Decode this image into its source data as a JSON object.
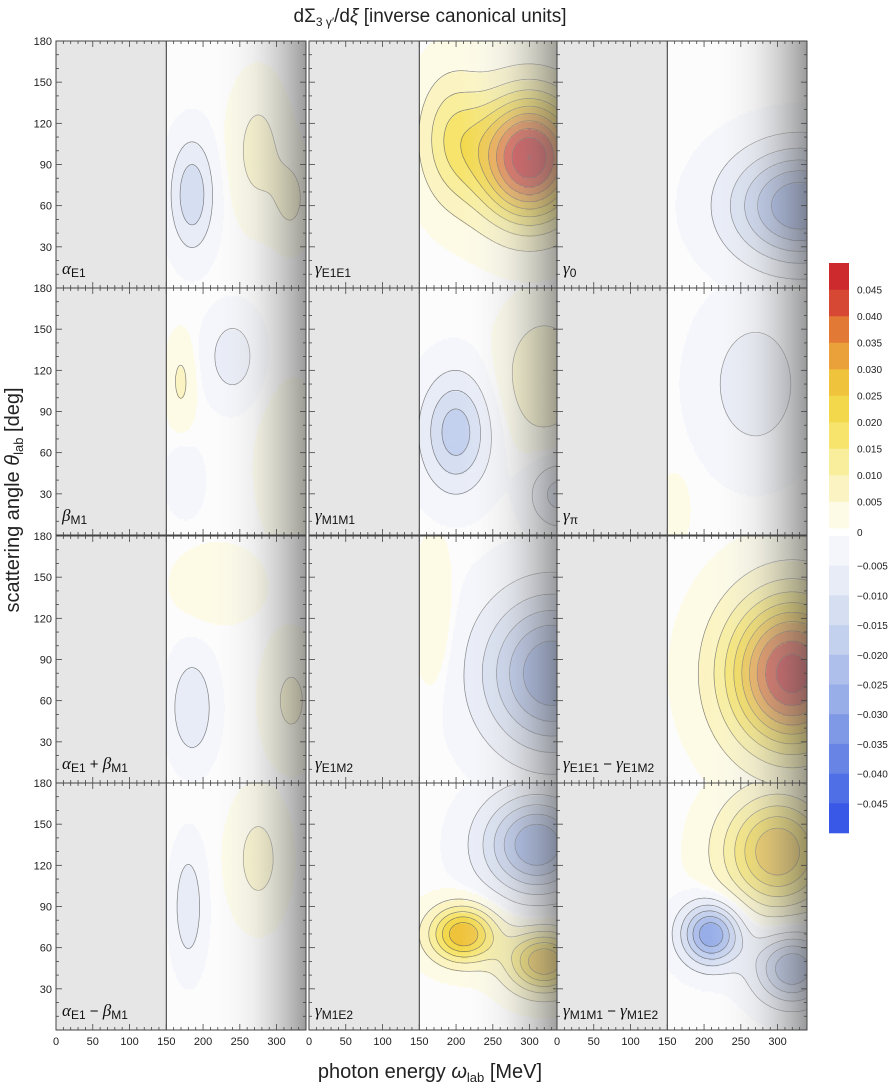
{
  "chart_data": {
    "type": "heatmap",
    "title_parts": [
      "dΣ",
      "3 γ′",
      "/d",
      "ξ",
      " [inverse canonical units]"
    ],
    "xlabel_parts": [
      "photon energy ",
      "ω",
      "lab",
      " [MeV]"
    ],
    "ylabel_parts": [
      "scattering angle ",
      "θ",
      "lab",
      " [deg]"
    ],
    "x_ticks": [
      0,
      50,
      100,
      150,
      200,
      250,
      300
    ],
    "x_tick_labels": [
      "0",
      "50",
      "100",
      "150",
      "200",
      "250",
      "300"
    ],
    "y_ticks": [
      30,
      60,
      90,
      120,
      150,
      180
    ],
    "y_tick_labels": [
      "30",
      "60",
      "90",
      "120",
      "150",
      "180"
    ],
    "xlim": [
      0,
      340
    ],
    "ylim": [
      0,
      180
    ],
    "threshold_energy": 150,
    "colorbar": {
      "ticks": [
        0.045,
        0.04,
        0.035,
        0.03,
        0.025,
        0.02,
        0.015,
        0.01,
        0.005,
        0,
        -0.005,
        -0.01,
        -0.015,
        -0.02,
        -0.025,
        -0.03,
        -0.035,
        -0.04,
        -0.045
      ],
      "tick_labels": [
        "0.045",
        "0.040",
        "0.035",
        "0.030",
        "0.025",
        "0.020",
        "0.015",
        "0.010",
        "0.005",
        "0",
        "−0.005",
        "−0.010",
        "−0.015",
        "−0.020",
        "−0.025",
        "−0.030",
        "−0.035",
        "−0.040",
        "−0.045"
      ],
      "positive_colors": [
        "#fdfbe6",
        "#fbf4c2",
        "#f8ee9c",
        "#f6e46d",
        "#f2d84a",
        "#efc33b",
        "#eaa13a",
        "#e27a35",
        "#d64734",
        "#cd2a2e"
      ],
      "negative_colors": [
        "#f4f6fb",
        "#e8ecf7",
        "#d6dff2",
        "#c3d0ee",
        "#adbfea",
        "#97aee8",
        "#7f99e6",
        "#6885e6",
        "#4f6fe6",
        "#3a58e8"
      ],
      "range": [
        -0.05,
        0.05
      ]
    },
    "panels": [
      {
        "row": 0,
        "col": 0,
        "label": "α",
        "label_sub": "E1",
        "blobs": [
          {
            "w": 185,
            "t": 68,
            "sw": 28,
            "st": 38,
            "a": -0.014
          },
          {
            "w": 275,
            "t": 100,
            "sw": 35,
            "st": 45,
            "a": 0.007
          },
          {
            "w": 320,
            "t": 65,
            "sw": 25,
            "st": 30,
            "a": 0.006
          }
        ]
      },
      {
        "row": 0,
        "col": 1,
        "label": "γ",
        "label_sub": "E1E1",
        "blobs": [
          {
            "w": 300,
            "t": 95,
            "sw": 70,
            "st": 45,
            "a": 0.05
          },
          {
            "w": 195,
            "t": 110,
            "sw": 45,
            "st": 45,
            "a": 0.013
          }
        ]
      },
      {
        "row": 0,
        "col": 2,
        "label": "γ",
        "label_sub": "0",
        "blobs": [
          {
            "w": 330,
            "t": 60,
            "sw": 90,
            "st": 40,
            "a": -0.03
          }
        ]
      },
      {
        "row": 1,
        "col": 0,
        "label": "β",
        "label_sub": "M1",
        "blobs": [
          {
            "w": 170,
            "t": 112,
            "sw": 18,
            "st": 30,
            "a": 0.006
          },
          {
            "w": 175,
            "t": 40,
            "sw": 22,
            "st": 22,
            "a": -0.005
          },
          {
            "w": 240,
            "t": 130,
            "sw": 35,
            "st": 30,
            "a": -0.008
          },
          {
            "w": 320,
            "t": 50,
            "sw": 40,
            "st": 50,
            "a": 0.005
          }
        ]
      },
      {
        "row": 1,
        "col": 1,
        "label": "γ",
        "label_sub": "M1M1",
        "blobs": [
          {
            "w": 200,
            "t": 75,
            "sw": 45,
            "st": 40,
            "a": -0.018
          },
          {
            "w": 320,
            "t": 115,
            "sw": 55,
            "st": 45,
            "a": 0.01
          },
          {
            "w": 340,
            "t": 30,
            "sw": 40,
            "st": 25,
            "a": -0.012
          }
        ]
      },
      {
        "row": 1,
        "col": 2,
        "label": "γ",
        "label_sub": "π",
        "blobs": [
          {
            "w": 270,
            "t": 110,
            "sw": 70,
            "st": 55,
            "a": -0.008
          },
          {
            "w": 160,
            "t": 20,
            "sw": 20,
            "st": 25,
            "a": 0.003
          }
        ]
      },
      {
        "row": 2,
        "col": 0,
        "label": "α",
        "label_sub": "E1",
        "label_op": " + ",
        "label2": "β",
        "label2_sub": "M1",
        "blobs": [
          {
            "w": 185,
            "t": 55,
            "sw": 28,
            "st": 35,
            "a": -0.01
          },
          {
            "w": 220,
            "t": 145,
            "sw": 55,
            "st": 25,
            "a": 0.004
          },
          {
            "w": 320,
            "t": 60,
            "sw": 35,
            "st": 40,
            "a": 0.006
          }
        ]
      },
      {
        "row": 2,
        "col": 1,
        "label": "γ",
        "label_sub": "E1M2",
        "blobs": [
          {
            "w": 330,
            "t": 80,
            "sw": 90,
            "st": 55,
            "a": -0.03
          },
          {
            "w": 170,
            "t": 120,
            "sw": 25,
            "st": 50,
            "a": 0.005
          }
        ]
      },
      {
        "row": 2,
        "col": 2,
        "label": "γ",
        "label_sub": "E1E1",
        "label_op": " − ",
        "label2": "γ",
        "label2_sub": "E1M2",
        "blobs": [
          {
            "w": 320,
            "t": 80,
            "sw": 85,
            "st": 55,
            "a": 0.048
          }
        ]
      },
      {
        "row": 3,
        "col": 0,
        "label": "α",
        "label_sub": "E1",
        "label_op": " − ",
        "label2": "β",
        "label2_sub": "M1",
        "blobs": [
          {
            "w": 180,
            "t": 90,
            "sw": 20,
            "st": 40,
            "a": -0.009
          },
          {
            "w": 275,
            "t": 125,
            "sw": 35,
            "st": 40,
            "a": 0.007
          }
        ]
      },
      {
        "row": 3,
        "col": 1,
        "label": "γ",
        "label_sub": "M1E2",
        "blobs": [
          {
            "w": 210,
            "t": 70,
            "sw": 45,
            "st": 20,
            "a": 0.03
          },
          {
            "w": 320,
            "t": 50,
            "sw": 50,
            "st": 22,
            "a": 0.03
          },
          {
            "w": 310,
            "t": 135,
            "sw": 70,
            "st": 35,
            "a": -0.03
          }
        ]
      },
      {
        "row": 3,
        "col": 2,
        "label": "γ",
        "label_sub": "M1M1",
        "label_op": " − ",
        "label2": "γ",
        "label2_sub": "M1E2",
        "blobs": [
          {
            "w": 210,
            "t": 70,
            "sw": 40,
            "st": 22,
            "a": -0.03
          },
          {
            "w": 320,
            "t": 45,
            "sw": 50,
            "st": 25,
            "a": -0.025
          },
          {
            "w": 300,
            "t": 130,
            "sw": 70,
            "st": 40,
            "a": 0.03
          }
        ]
      }
    ]
  }
}
